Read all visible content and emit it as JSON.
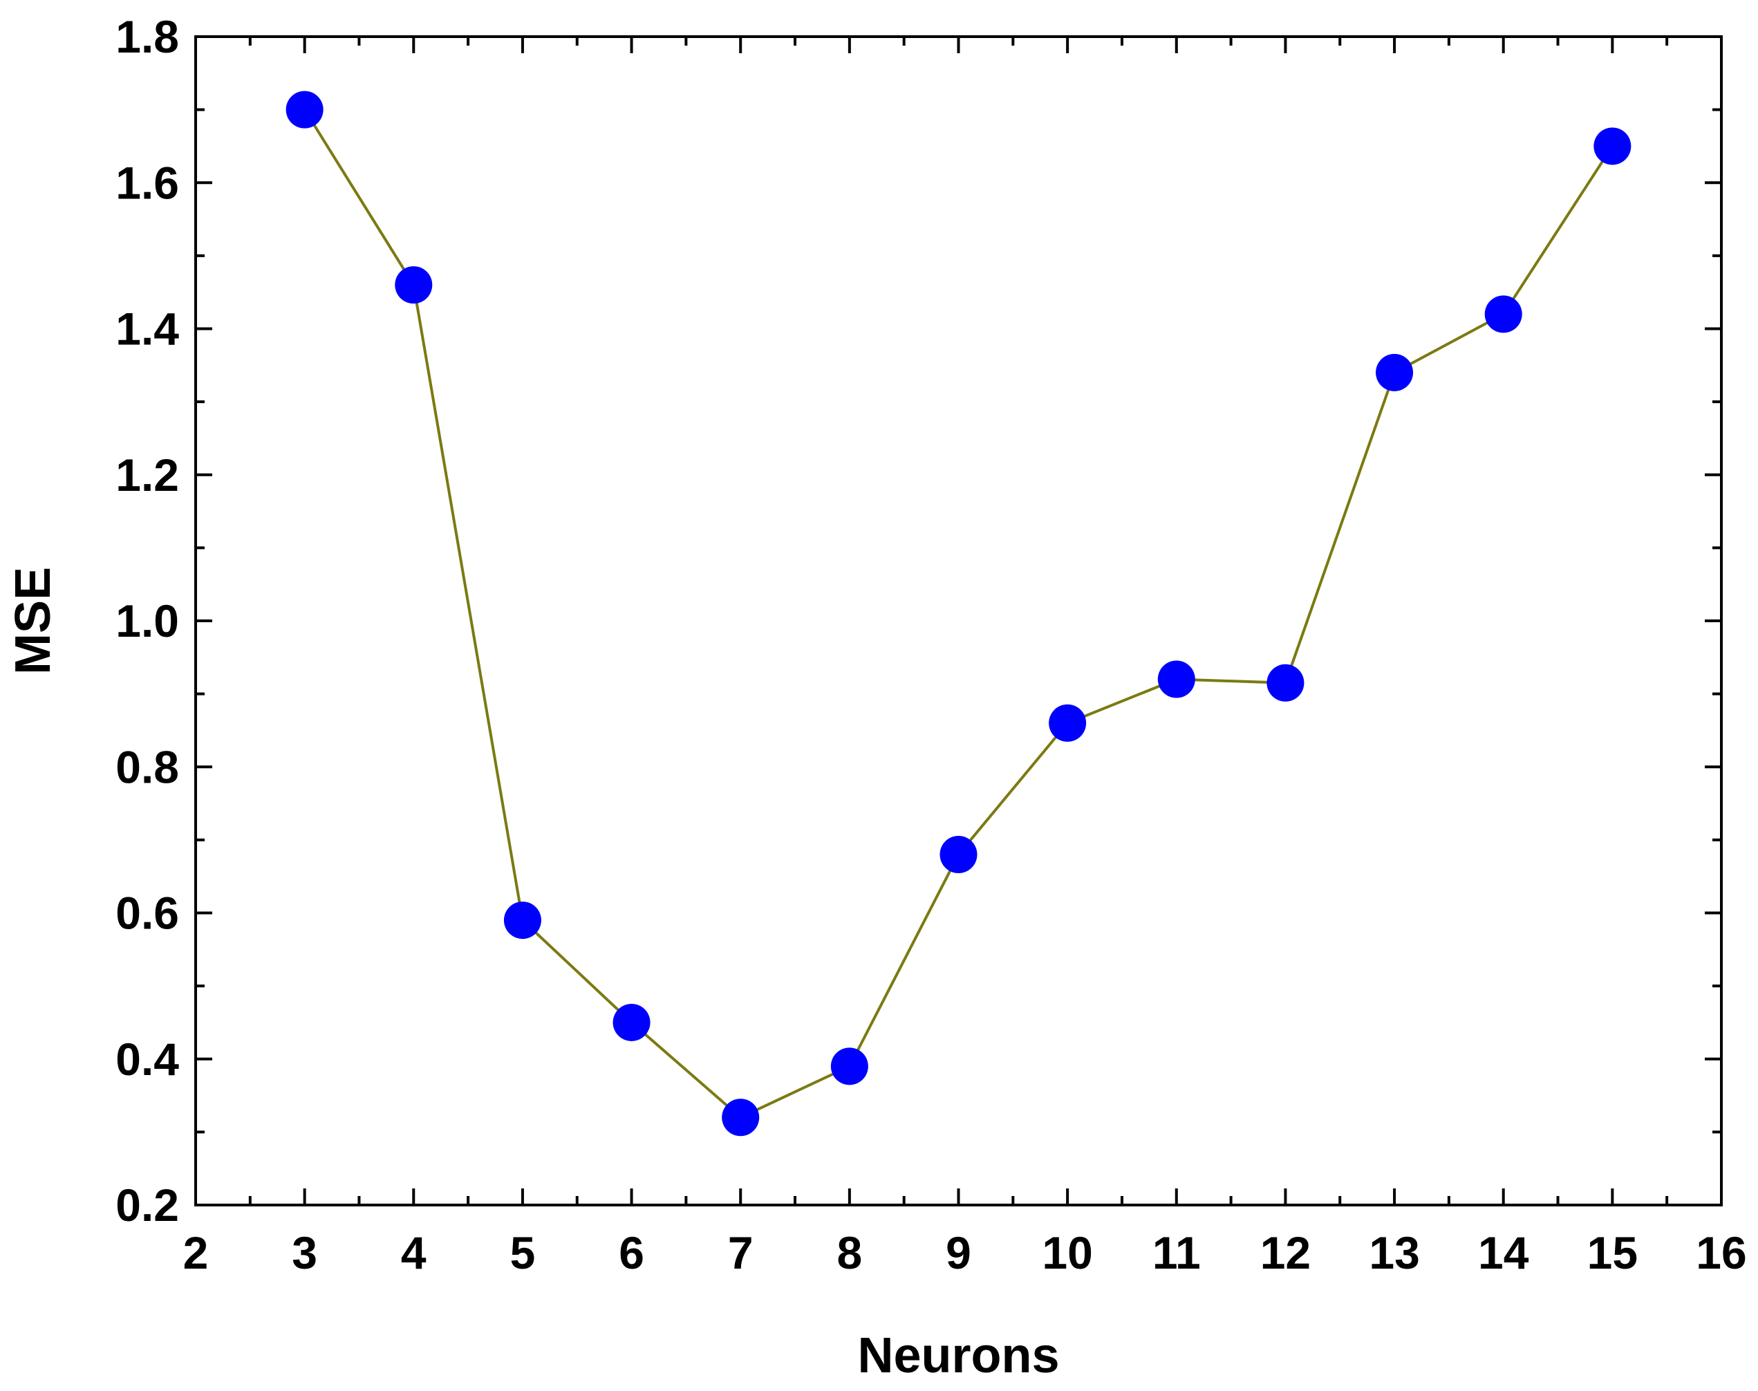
{
  "chart_data": {
    "type": "line",
    "title": "",
    "xlabel": "Neurons",
    "ylabel": "MSE",
    "xlim": [
      2,
      16
    ],
    "ylim": [
      0.2,
      1.8
    ],
    "x_ticks": [
      "2",
      "3",
      "4",
      "5",
      "6",
      "7",
      "8",
      "9",
      "10",
      "11",
      "12",
      "13",
      "14",
      "15",
      "16"
    ],
    "y_ticks": [
      "0.2",
      "0.4",
      "0.6",
      "0.8",
      "1.0",
      "1.2",
      "1.4",
      "1.6",
      "1.8"
    ],
    "grid": false,
    "legend": "none",
    "series": [
      {
        "x": [
          3,
          4,
          5,
          6,
          7,
          8,
          9,
          10,
          11,
          12,
          13,
          14,
          15
        ],
        "values": [
          1.7,
          1.46,
          0.59,
          0.45,
          0.32,
          0.39,
          0.68,
          0.86,
          0.92,
          0.915,
          1.34,
          1.42,
          1.65
        ],
        "line_color": "#7b7a12",
        "marker_color": "#0000ff"
      }
    ]
  }
}
